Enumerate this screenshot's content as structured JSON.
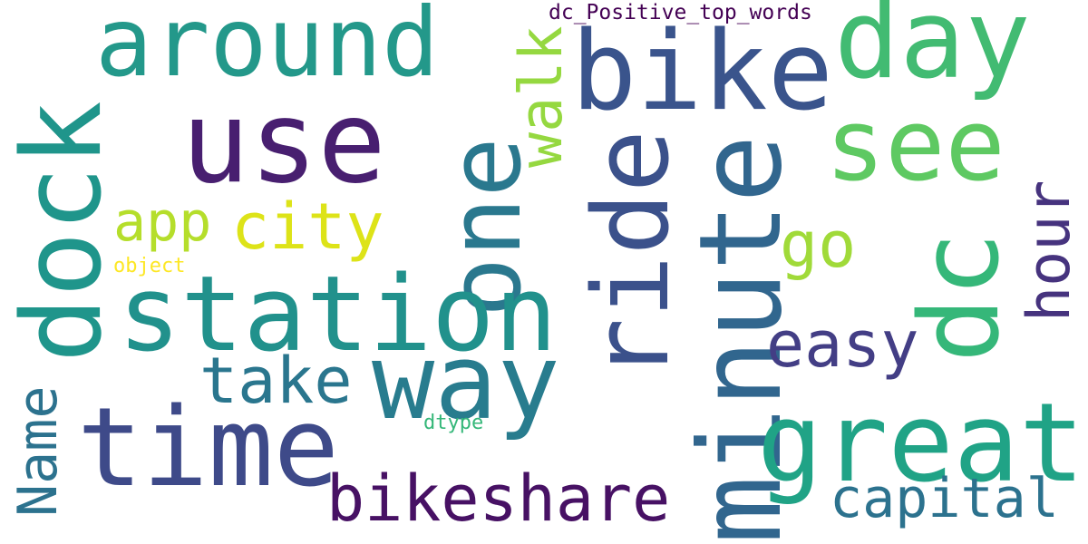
{
  "words": [
    {
      "id": "around",
      "text": "around",
      "color": "#23988a",
      "vertical": false
    },
    {
      "id": "bike",
      "text": "bike",
      "color": "#3a548c",
      "vertical": false
    },
    {
      "id": "day",
      "text": "day",
      "color": "#42bb72",
      "vertical": false
    },
    {
      "id": "use",
      "text": "use",
      "color": "#481f70",
      "vertical": false
    },
    {
      "id": "see",
      "text": "see",
      "color": "#5ec962",
      "vertical": false
    },
    {
      "id": "dock",
      "text": "dock",
      "color": "#1f958b",
      "vertical": true
    },
    {
      "id": "one",
      "text": "one",
      "color": "#2a788e",
      "vertical": true
    },
    {
      "id": "walk",
      "text": "walk",
      "color": "#95d840",
      "vertical": true
    },
    {
      "id": "ride",
      "text": "ride",
      "color": "#3b518b",
      "vertical": true
    },
    {
      "id": "minute",
      "text": "minute",
      "color": "#31668e",
      "vertical": true
    },
    {
      "id": "dc",
      "text": "dc",
      "color": "#35b779",
      "vertical": true
    },
    {
      "id": "hour",
      "text": "hour",
      "color": "#46337e",
      "vertical": true
    },
    {
      "id": "app",
      "text": "app",
      "color": "#b5de2b",
      "vertical": false
    },
    {
      "id": "city",
      "text": "city",
      "color": "#dde318",
      "vertical": false
    },
    {
      "id": "go",
      "text": "go",
      "color": "#a0da39",
      "vertical": false
    },
    {
      "id": "object",
      "text": "object",
      "color": "#fde725",
      "vertical": false
    },
    {
      "id": "station",
      "text": "station",
      "color": "#21918c",
      "vertical": false
    },
    {
      "id": "easy",
      "text": "easy",
      "color": "#433e85",
      "vertical": false
    },
    {
      "id": "way",
      "text": "way",
      "color": "#287c8e",
      "vertical": false
    },
    {
      "id": "take",
      "text": "take",
      "color": "#2a768e",
      "vertical": false
    },
    {
      "id": "time",
      "text": "time",
      "color": "#3e4a89",
      "vertical": false
    },
    {
      "id": "great",
      "text": "great",
      "color": "#20a386",
      "vertical": false
    },
    {
      "id": "Name",
      "text": "Name",
      "color": "#2c728e",
      "vertical": true
    },
    {
      "id": "dtype",
      "text": "dtype",
      "color": "#35b779",
      "vertical": false
    },
    {
      "id": "bikeshare",
      "text": "bikeshare",
      "color": "#471164",
      "vertical": false
    },
    {
      "id": "capital",
      "text": "capital",
      "color": "#2c728e",
      "vertical": false
    },
    {
      "id": "dc_Positive_top_words",
      "text": "dc_Positive_top_words",
      "color": "#440154",
      "vertical": false
    }
  ]
}
